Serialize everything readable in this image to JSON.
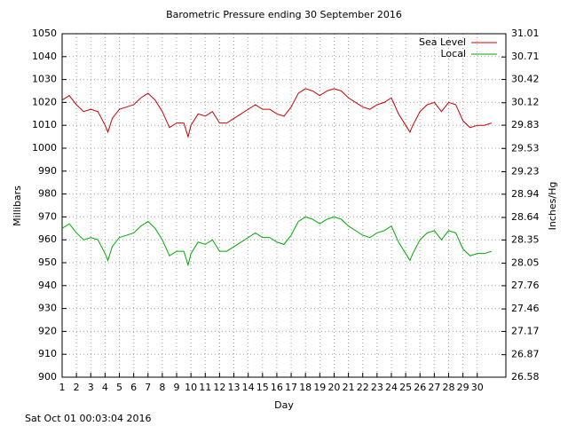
{
  "chart_data": {
    "type": "line",
    "title": "Barometric Pressure ending 30 September 2016",
    "x_label": "Day",
    "y_label": "Millibars",
    "y2_label": "Inches/Hg",
    "footer": "Sat Oct 01 00:03:04 2016",
    "xlim": [
      1,
      32
    ],
    "xticks": [
      1,
      2,
      3,
      4,
      5,
      6,
      7,
      8,
      9,
      10,
      11,
      12,
      13,
      14,
      15,
      16,
      17,
      18,
      19,
      20,
      21,
      22,
      23,
      24,
      25,
      26,
      27,
      28,
      29,
      30
    ],
    "ylim": [
      900,
      1050
    ],
    "yticks": [
      900,
      910,
      920,
      930,
      940,
      950,
      960,
      970,
      980,
      990,
      1000,
      1010,
      1020,
      1030,
      1040,
      1050
    ],
    "y2lim": [
      26.58,
      31.01
    ],
    "y2ticks": [
      26.58,
      26.87,
      27.17,
      27.46,
      27.76,
      28.05,
      28.35,
      28.64,
      28.94,
      29.23,
      29.53,
      29.83,
      30.12,
      30.42,
      30.71,
      31.01
    ],
    "grid": true,
    "legend": "top-right",
    "x": [
      1,
      1.5,
      2,
      2.5,
      3,
      3.5,
      4,
      4.2,
      4.5,
      5,
      5.5,
      6,
      6.5,
      7,
      7.5,
      8,
      8.5,
      9,
      9.5,
      9.8,
      10,
      10.5,
      11,
      11.5,
      12,
      12.5,
      13,
      13.5,
      14,
      14.5,
      15,
      15.5,
      16,
      16.5,
      17,
      17.5,
      18,
      18.5,
      19,
      19.5,
      20,
      20.5,
      21,
      21.5,
      22,
      22.5,
      23,
      23.5,
      24,
      24.5,
      25,
      25.3,
      25.5,
      26,
      26.5,
      27,
      27.5,
      28,
      28.5,
      29,
      29.5,
      30,
      30.5,
      31
    ],
    "series": [
      {
        "name": "Sea Level",
        "color": "#cc0000",
        "values": [
          1021,
          1023,
          1019,
          1016,
          1017,
          1016,
          1010,
          1007,
          1013,
          1017,
          1018,
          1019,
          1022,
          1024,
          1021,
          1016,
          1009,
          1011,
          1011,
          1005,
          1010,
          1015,
          1014,
          1016,
          1011,
          1011,
          1013,
          1015,
          1017,
          1019,
          1017,
          1017,
          1015,
          1014,
          1018,
          1024,
          1026,
          1025,
          1023,
          1025,
          1026,
          1025,
          1022,
          1020,
          1018,
          1017,
          1019,
          1020,
          1022,
          1015,
          1010,
          1007,
          1010,
          1016,
          1019,
          1020,
          1016,
          1020,
          1019,
          1012,
          1009,
          1010,
          1010,
          1011
        ]
      },
      {
        "name": "Local",
        "color": "#00aa00",
        "values": [
          965,
          967,
          963,
          960,
          961,
          960,
          954,
          951,
          957,
          961,
          962,
          963,
          966,
          968,
          965,
          960,
          953,
          955,
          955,
          949,
          954,
          959,
          958,
          960,
          955,
          955,
          957,
          959,
          961,
          963,
          961,
          961,
          959,
          958,
          962,
          968,
          970,
          969,
          967,
          969,
          970,
          969,
          966,
          964,
          962,
          961,
          963,
          964,
          966,
          959,
          954,
          951,
          954,
          960,
          963,
          964,
          960,
          964,
          963,
          956,
          953,
          954,
          954,
          955
        ]
      }
    ]
  }
}
